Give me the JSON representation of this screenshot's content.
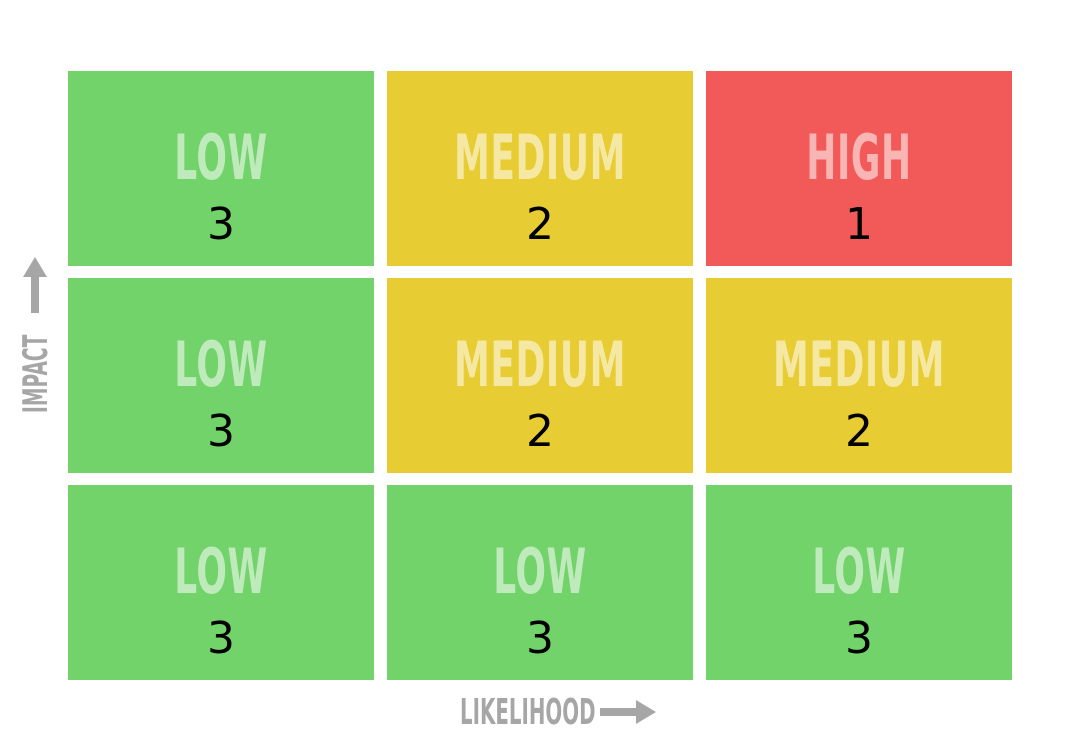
{
  "colors": {
    "low": "#72d36a",
    "medium": "#e8cc33",
    "high": "#f25a5a",
    "axis": "#a6a6a6"
  },
  "axes": {
    "x_label": "LIKELIHOOD",
    "y_label": "IMPACT"
  },
  "grid": {
    "rows": [
      [
        {
          "level": "LOW",
          "count": "3",
          "color_key": "low"
        },
        {
          "level": "MEDIUM",
          "count": "2",
          "color_key": "medium"
        },
        {
          "level": "HIGH",
          "count": "1",
          "color_key": "high"
        }
      ],
      [
        {
          "level": "LOW",
          "count": "3",
          "color_key": "low"
        },
        {
          "level": "MEDIUM",
          "count": "2",
          "color_key": "medium"
        },
        {
          "level": "MEDIUM",
          "count": "2",
          "color_key": "medium"
        }
      ],
      [
        {
          "level": "LOW",
          "count": "3",
          "color_key": "low"
        },
        {
          "level": "LOW",
          "count": "3",
          "color_key": "low"
        },
        {
          "level": "LOW",
          "count": "3",
          "color_key": "low"
        }
      ]
    ]
  }
}
